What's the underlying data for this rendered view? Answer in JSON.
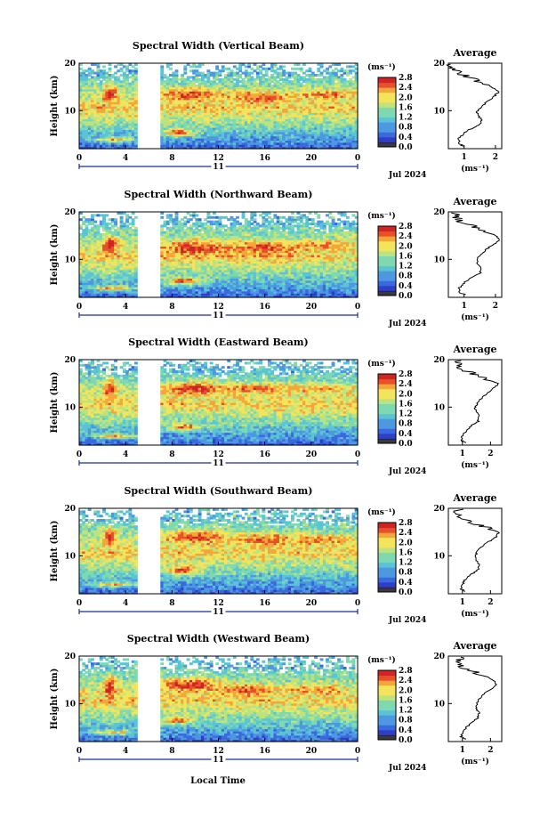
{
  "x_axis_label": "Local Time",
  "date_label": "Jul 2024",
  "day_label": "11",
  "average_title": "Average",
  "unit_label": "(ms⁻¹)",
  "colors": {
    "scale": [
      "#2b1f55",
      "#2d3fc4",
      "#3a68de",
      "#4d98e0",
      "#5bc4d4",
      "#7fd9b0",
      "#bde380",
      "#f3e45c",
      "#f5a63a",
      "#e8502a",
      "#cf2424"
    ],
    "background": "#ffffff",
    "axis": "#000000",
    "gap": "#ffffff"
  },
  "chart_data": [
    {
      "type": "heatmap",
      "title": "Spectral Width (Vertical Beam)",
      "xlabel": "",
      "ylabel": "Height (km)",
      "xlim": [
        0,
        24
      ],
      "ylim": [
        2,
        20
      ],
      "x_ticks": [
        "0",
        "4",
        "8",
        "12",
        "16",
        "20",
        "0"
      ],
      "y_ticks": [
        "10",
        "20"
      ],
      "data_gap_hours": [
        5,
        7
      ],
      "colorbar": {
        "label": "(ms⁻¹)",
        "range": [
          0.0,
          2.8
        ],
        "ticks": [
          "0.0",
          "0.4",
          "0.8",
          "1.2",
          "1.6",
          "2.0",
          "2.4",
          "2.8"
        ]
      },
      "features": [
        {
          "t": 2.7,
          "h": 13.5,
          "w": 0.6,
          "d": 1.8,
          "v": 2.8
        },
        {
          "t": 2.6,
          "h": 9.5,
          "w": 0.6,
          "d": 3.0,
          "v": 1.7
        },
        {
          "t": 3.0,
          "h": 4.0,
          "w": 1.8,
          "d": 0.5,
          "v": 2.3
        },
        {
          "t": 9.5,
          "h": 13.5,
          "w": 2.5,
          "d": 1.2,
          "v": 2.6
        },
        {
          "t": 15.5,
          "h": 13.0,
          "w": 3.0,
          "d": 1.2,
          "v": 2.5
        },
        {
          "t": 21.5,
          "h": 13.5,
          "w": 2.5,
          "d": 1.0,
          "v": 2.4
        },
        {
          "t": 8.5,
          "h": 5.5,
          "w": 1.3,
          "d": 0.8,
          "v": 2.5
        }
      ],
      "average_profile": {
        "xlim": [
          0.5,
          2.2
        ],
        "x_ticks": [
          "1",
          "2"
        ],
        "ylim": [
          2,
          20
        ],
        "y_ticks": [
          "10",
          "20"
        ],
        "xlabel": "(ms⁻¹)",
        "height_km": [
          2.5,
          3,
          4,
          5,
          6,
          7,
          8,
          9,
          10,
          11,
          12,
          13,
          14,
          15,
          16,
          17,
          18,
          19,
          20
        ],
        "width": [
          1.0,
          0.85,
          0.82,
          0.95,
          1.15,
          1.5,
          1.55,
          1.45,
          1.42,
          1.6,
          1.75,
          1.95,
          2.1,
          1.9,
          1.55,
          1.2,
          0.8,
          0.6,
          0.6
        ]
      }
    },
    {
      "type": "heatmap",
      "title": "Spectral Width (Northward Beam)",
      "xlabel": "",
      "ylabel": "Height (km)",
      "xlim": [
        0,
        24
      ],
      "ylim": [
        2,
        20
      ],
      "x_ticks": [
        "0",
        "4",
        "8",
        "12",
        "16",
        "20",
        "0"
      ],
      "y_ticks": [
        "10",
        "20"
      ],
      "data_gap_hours": [
        5,
        7
      ],
      "colorbar": {
        "label": "(ms⁻¹)",
        "range": [
          0.0,
          2.8
        ],
        "ticks": [
          "0.0",
          "0.4",
          "0.8",
          "1.2",
          "1.6",
          "2.0",
          "2.4",
          "2.8"
        ]
      },
      "features": [
        {
          "t": 2.7,
          "h": 13.0,
          "w": 0.6,
          "d": 1.8,
          "v": 2.8
        },
        {
          "t": 2.6,
          "h": 9.5,
          "w": 0.6,
          "d": 3.0,
          "v": 1.7
        },
        {
          "t": 3.0,
          "h": 4.0,
          "w": 1.8,
          "d": 0.5,
          "v": 2.3
        },
        {
          "t": 10.0,
          "h": 12.5,
          "w": 2.8,
          "d": 1.4,
          "v": 2.7
        },
        {
          "t": 16.0,
          "h": 12.5,
          "w": 3.0,
          "d": 1.2,
          "v": 2.6
        },
        {
          "t": 21.5,
          "h": 13.0,
          "w": 2.2,
          "d": 1.0,
          "v": 2.4
        },
        {
          "t": 9.0,
          "h": 5.5,
          "w": 1.5,
          "d": 0.8,
          "v": 2.5
        }
      ],
      "average_profile": {
        "xlim": [
          0.5,
          2.2
        ],
        "x_ticks": [
          "1",
          "2"
        ],
        "ylim": [
          2,
          20
        ],
        "y_ticks": [
          "10",
          "20"
        ],
        "xlabel": "(ms⁻¹)",
        "height_km": [
          2.5,
          3,
          4,
          5,
          6,
          7,
          8,
          9,
          10,
          11,
          12,
          13,
          14,
          15,
          16,
          17,
          18,
          19,
          20
        ],
        "width": [
          1.05,
          0.85,
          0.85,
          1.0,
          1.2,
          1.5,
          1.55,
          1.45,
          1.4,
          1.55,
          1.7,
          1.9,
          2.15,
          2.0,
          1.6,
          1.25,
          0.9,
          0.7,
          0.75
        ]
      }
    },
    {
      "type": "heatmap",
      "title": "Spectral Width (Eastward Beam)",
      "xlabel": "",
      "ylabel": "Height (km)",
      "xlim": [
        0,
        24
      ],
      "ylim": [
        2,
        20
      ],
      "x_ticks": [
        "0",
        "4",
        "8",
        "12",
        "16",
        "20",
        "0"
      ],
      "y_ticks": [
        "10",
        "20"
      ],
      "data_gap_hours": [
        5,
        7
      ],
      "colorbar": {
        "label": "(ms⁻¹)",
        "range": [
          0.0,
          2.8
        ],
        "ticks": [
          "0.0",
          "0.4",
          "0.8",
          "1.2",
          "1.6",
          "2.0",
          "2.4",
          "2.8"
        ]
      },
      "features": [
        {
          "t": 2.7,
          "h": 14.0,
          "w": 0.6,
          "d": 1.8,
          "v": 2.8
        },
        {
          "t": 2.6,
          "h": 9.5,
          "w": 0.6,
          "d": 3.0,
          "v": 1.7
        },
        {
          "t": 3.0,
          "h": 4.0,
          "w": 1.8,
          "d": 0.5,
          "v": 2.3
        },
        {
          "t": 10.0,
          "h": 14.0,
          "w": 2.8,
          "d": 1.2,
          "v": 2.7
        },
        {
          "t": 15.5,
          "h": 14.0,
          "w": 3.0,
          "d": 1.0,
          "v": 2.5
        },
        {
          "t": 21.0,
          "h": 14.0,
          "w": 2.5,
          "d": 1.0,
          "v": 2.3
        },
        {
          "t": 9.0,
          "h": 6.0,
          "w": 1.3,
          "d": 0.8,
          "v": 2.5
        }
      ],
      "average_profile": {
        "xlim": [
          0.5,
          2.4
        ],
        "x_ticks": [
          "1",
          "2"
        ],
        "ylim": [
          2,
          20
        ],
        "y_ticks": [
          "10",
          "20"
        ],
        "xlabel": "(ms⁻¹)",
        "height_km": [
          2.5,
          3,
          4,
          5,
          6,
          7,
          8,
          9,
          10,
          11,
          12,
          13,
          14,
          15,
          16,
          17,
          18,
          19,
          20
        ],
        "width": [
          1.1,
          0.95,
          1.0,
          1.15,
          1.3,
          1.55,
          1.6,
          1.5,
          1.45,
          1.55,
          1.7,
          1.9,
          2.1,
          2.3,
          1.8,
          1.4,
          1.0,
          0.8,
          0.9
        ]
      }
    },
    {
      "type": "heatmap",
      "title": "Spectral Width (Southward Beam)",
      "xlabel": "",
      "ylabel": "Height (km)",
      "xlim": [
        0,
        24
      ],
      "ylim": [
        2,
        20
      ],
      "x_ticks": [
        "0",
        "4",
        "8",
        "12",
        "16",
        "20",
        "0"
      ],
      "y_ticks": [
        "10",
        "20"
      ],
      "data_gap_hours": [
        5,
        7
      ],
      "colorbar": {
        "label": "(ms⁻¹)",
        "range": [
          0.0,
          2.8
        ],
        "ticks": [
          "0.0",
          "0.4",
          "0.8",
          "1.2",
          "1.6",
          "2.0",
          "2.4",
          "2.8"
        ]
      },
      "features": [
        {
          "t": 2.7,
          "h": 14.0,
          "w": 0.6,
          "d": 1.8,
          "v": 2.8
        },
        {
          "t": 2.6,
          "h": 9.5,
          "w": 0.6,
          "d": 3.0,
          "v": 1.7
        },
        {
          "t": 3.0,
          "h": 4.0,
          "w": 1.8,
          "d": 0.5,
          "v": 2.3
        },
        {
          "t": 10.0,
          "h": 14.0,
          "w": 2.8,
          "d": 1.4,
          "v": 2.6
        },
        {
          "t": 16.0,
          "h": 13.5,
          "w": 3.0,
          "d": 1.2,
          "v": 2.5
        },
        {
          "t": 21.0,
          "h": 13.5,
          "w": 2.5,
          "d": 1.0,
          "v": 2.4
        },
        {
          "t": 9.0,
          "h": 7.0,
          "w": 1.5,
          "d": 1.0,
          "v": 2.5
        }
      ],
      "average_profile": {
        "xlim": [
          0.5,
          2.4
        ],
        "x_ticks": [
          "1",
          "2"
        ],
        "ylim": [
          2,
          20
        ],
        "y_ticks": [
          "10",
          "20"
        ],
        "xlabel": "(ms⁻¹)",
        "height_km": [
          2.5,
          3,
          4,
          5,
          6,
          7,
          8,
          9,
          10,
          11,
          12,
          13,
          14,
          15,
          16,
          17,
          18,
          19,
          20
        ],
        "width": [
          1.1,
          0.95,
          1.0,
          1.1,
          1.3,
          1.55,
          1.6,
          1.5,
          1.45,
          1.55,
          1.7,
          1.95,
          2.2,
          2.3,
          1.85,
          1.3,
          0.95,
          0.8,
          0.9
        ]
      }
    },
    {
      "type": "heatmap",
      "title": "Spectral Width (Westward Beam)",
      "xlabel": "Local Time",
      "ylabel": "Height (km)",
      "xlim": [
        0,
        24
      ],
      "ylim": [
        2,
        20
      ],
      "x_ticks": [
        "0",
        "4",
        "8",
        "12",
        "16",
        "20",
        "0"
      ],
      "y_ticks": [
        "10",
        "20"
      ],
      "data_gap_hours": [
        5,
        7
      ],
      "colorbar": {
        "label": "(ms⁻¹)",
        "range": [
          0.0,
          2.8
        ],
        "ticks": [
          "0.0",
          "0.4",
          "0.8",
          "1.2",
          "1.6",
          "2.0",
          "2.4",
          "2.8"
        ]
      },
      "features": [
        {
          "t": 2.7,
          "h": 13.5,
          "w": 0.5,
          "d": 2.5,
          "v": 2.8
        },
        {
          "t": 2.6,
          "h": 9.5,
          "w": 0.6,
          "d": 3.0,
          "v": 1.7
        },
        {
          "t": 3.0,
          "h": 4.0,
          "w": 1.8,
          "d": 0.5,
          "v": 2.2
        },
        {
          "t": 9.5,
          "h": 14.0,
          "w": 2.5,
          "d": 1.5,
          "v": 2.7
        },
        {
          "t": 14.5,
          "h": 13.0,
          "w": 2.5,
          "d": 1.2,
          "v": 2.5
        },
        {
          "t": 20.5,
          "h": 13.0,
          "w": 2.5,
          "d": 1.0,
          "v": 2.4
        },
        {
          "t": 8.5,
          "h": 6.5,
          "w": 1.3,
          "d": 0.8,
          "v": 2.4
        }
      ],
      "average_profile": {
        "xlim": [
          0.5,
          2.4
        ],
        "x_ticks": [
          "1",
          "2"
        ],
        "ylim": [
          2,
          20
        ],
        "y_ticks": [
          "10",
          "20"
        ],
        "xlabel": "(ms⁻¹)",
        "height_km": [
          2.5,
          3,
          4,
          5,
          6,
          7,
          8,
          9,
          10,
          11,
          12,
          13,
          14,
          15,
          16,
          17,
          18,
          19,
          20
        ],
        "width": [
          1.1,
          0.95,
          1.0,
          1.15,
          1.35,
          1.55,
          1.6,
          1.5,
          1.5,
          1.6,
          1.75,
          2.0,
          2.2,
          2.1,
          1.7,
          1.3,
          0.9,
          0.8,
          1.0
        ]
      }
    }
  ]
}
